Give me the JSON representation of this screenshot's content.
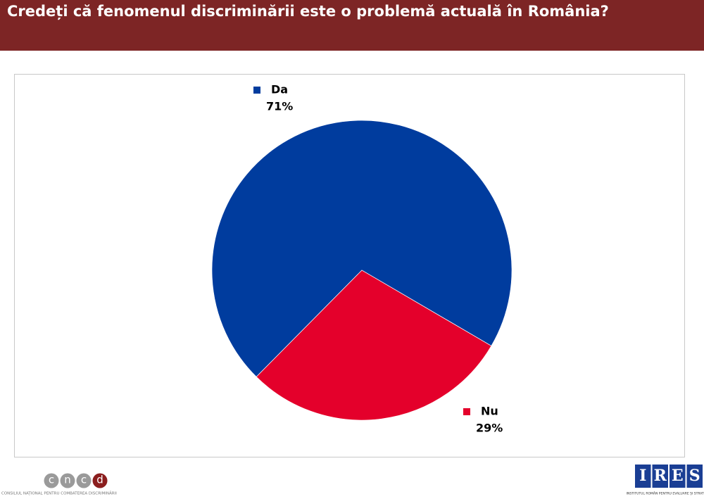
{
  "chart_data": {
    "type": "pie",
    "title": "Credeți că fenomenul discriminării este o problemă actuală în România?",
    "categories": [
      "Da",
      "Nu"
    ],
    "values": [
      71,
      29
    ],
    "value_labels": [
      "71%",
      "29%"
    ],
    "colors": [
      "#003c9e",
      "#e4002b"
    ]
  },
  "footer": {
    "left_logo": {
      "letters": [
        "c",
        "n",
        "c",
        "d"
      ],
      "caption": "CONSILIUL NAȚIONAL PENTRU COMBATEREA DISCRIMINĂRII"
    },
    "right_logo": {
      "letters": [
        "I",
        "R",
        "E",
        "S"
      ],
      "caption": "INSTITUTUL ROMÂN PENTRU EVALUARE ȘI STRATEGIE"
    }
  }
}
